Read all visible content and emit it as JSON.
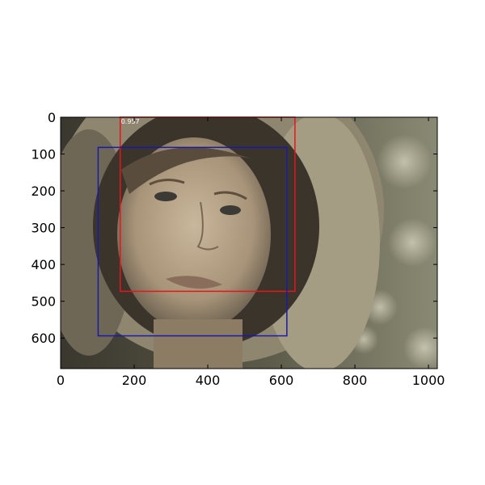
{
  "image": {
    "description_icon": "portrait-photo-icon",
    "width_units": 1024,
    "height_units": 683
  },
  "axes": {
    "x_ticks": [
      "0",
      "200",
      "400",
      "600",
      "800",
      "1000"
    ],
    "y_ticks": [
      "0",
      "100",
      "200",
      "300",
      "400",
      "500",
      "600"
    ],
    "x_range": [
      0,
      1024
    ],
    "y_range": [
      0,
      683
    ],
    "y_inverted": true
  },
  "boxes": [
    {
      "label": "0.957",
      "color": "#e8141a",
      "x1": 162,
      "y1": 0,
      "x2": 637,
      "y2": 473
    },
    {
      "label": "",
      "color": "#1a1aa8",
      "x1": 102,
      "y1": 82,
      "x2": 615,
      "y2": 594
    }
  ],
  "colors": {
    "frame": "#000000",
    "background": "#ffffff"
  }
}
